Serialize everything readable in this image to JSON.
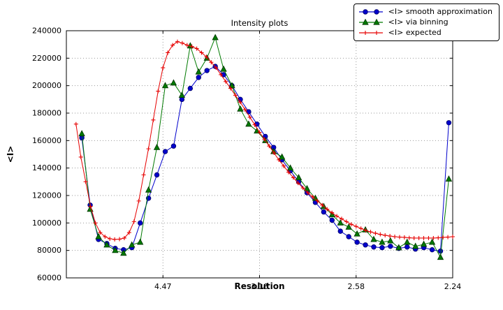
{
  "chart_data": {
    "type": "line",
    "title": "Intensity plots",
    "xlabel": "Resolution",
    "ylabel": "<I>",
    "xlim": [
      0,
      0.2
    ],
    "ylim": [
      60000,
      240000
    ],
    "grid": true,
    "legend_position": "upper-right",
    "x_ticks": [
      {
        "value": 0.05,
        "label": "4.47"
      },
      {
        "value": 0.1,
        "label": "3.16"
      },
      {
        "value": 0.15,
        "label": "2.58"
      },
      {
        "value": 0.2,
        "label": "2.24"
      }
    ],
    "y_ticks": [
      {
        "value": 60000,
        "label": "60000"
      },
      {
        "value": 80000,
        "label": "80000"
      },
      {
        "value": 100000,
        "label": "100000"
      },
      {
        "value": 120000,
        "label": "120000"
      },
      {
        "value": 140000,
        "label": "140000"
      },
      {
        "value": 160000,
        "label": "160000"
      },
      {
        "value": 180000,
        "label": "180000"
      },
      {
        "value": 200000,
        "label": "200000"
      },
      {
        "value": 220000,
        "label": "220000"
      },
      {
        "value": 240000,
        "label": "240000"
      }
    ],
    "series": [
      {
        "id": "smooth",
        "name": "<I> smooth approximation",
        "color": "#0000cc",
        "edge": "#000066",
        "marker": "circle",
        "x_start": 0.008,
        "x_step": 0.004318,
        "y": [
          162000,
          113000,
          88000,
          85000,
          81500,
          80500,
          82000,
          100000,
          118000,
          135000,
          152000,
          156000,
          190000,
          198000,
          206000,
          211000,
          214000,
          208000,
          200000,
          190000,
          181000,
          172000,
          163000,
          155000,
          146000,
          138000,
          130000,
          122000,
          115000,
          108000,
          102000,
          94000,
          90000,
          86000,
          84000,
          82500,
          82000,
          83000,
          81500,
          82500,
          81000,
          82000,
          80500,
          79500,
          173000
        ]
      },
      {
        "id": "binning",
        "name": "<I> via binning",
        "color": "#007a00",
        "edge": "#003300",
        "marker": "triangle",
        "x_start": 0.008,
        "x_step": 0.004318,
        "y": [
          165000,
          110000,
          90000,
          84000,
          80000,
          78000,
          84000,
          86000,
          124000,
          155000,
          200000,
          202000,
          193000,
          229000,
          210000,
          220000,
          235000,
          212000,
          200000,
          183000,
          172000,
          167000,
          160000,
          152000,
          148000,
          140000,
          133000,
          125000,
          118000,
          112000,
          106000,
          100000,
          97000,
          92000,
          95000,
          88000,
          86000,
          87000,
          82000,
          86000,
          83000,
          84500,
          86000,
          75000,
          132000
        ]
      },
      {
        "id": "expected",
        "name": "<I> expected",
        "color": "#e60000",
        "edge": "#e60000",
        "marker": "plus",
        "x_start": 0.005,
        "x_step": 0.0025,
        "y": [
          172000,
          148000,
          130000,
          112000,
          100000,
          93000,
          90000,
          88500,
          88000,
          88200,
          89000,
          93000,
          101000,
          116000,
          135000,
          154000,
          175000,
          196000,
          213000,
          224000,
          229500,
          232000,
          231000,
          229500,
          228500,
          227000,
          224000,
          221000,
          217000,
          213000,
          208000,
          203000,
          198000,
          193000,
          188000,
          182500,
          177000,
          171500,
          166000,
          161000,
          156000,
          151000,
          146000,
          141500,
          137000,
          133000,
          129000,
          125500,
          122000,
          119000,
          116000,
          113000,
          110000,
          107500,
          105000,
          103000,
          101000,
          99000,
          97500,
          96000,
          94500,
          93500,
          92500,
          91700,
          91000,
          90500,
          90000,
          89700,
          89500,
          89200,
          89000,
          89000,
          89000,
          89000,
          89000,
          89200,
          89500,
          89700,
          90000
        ]
      }
    ]
  }
}
